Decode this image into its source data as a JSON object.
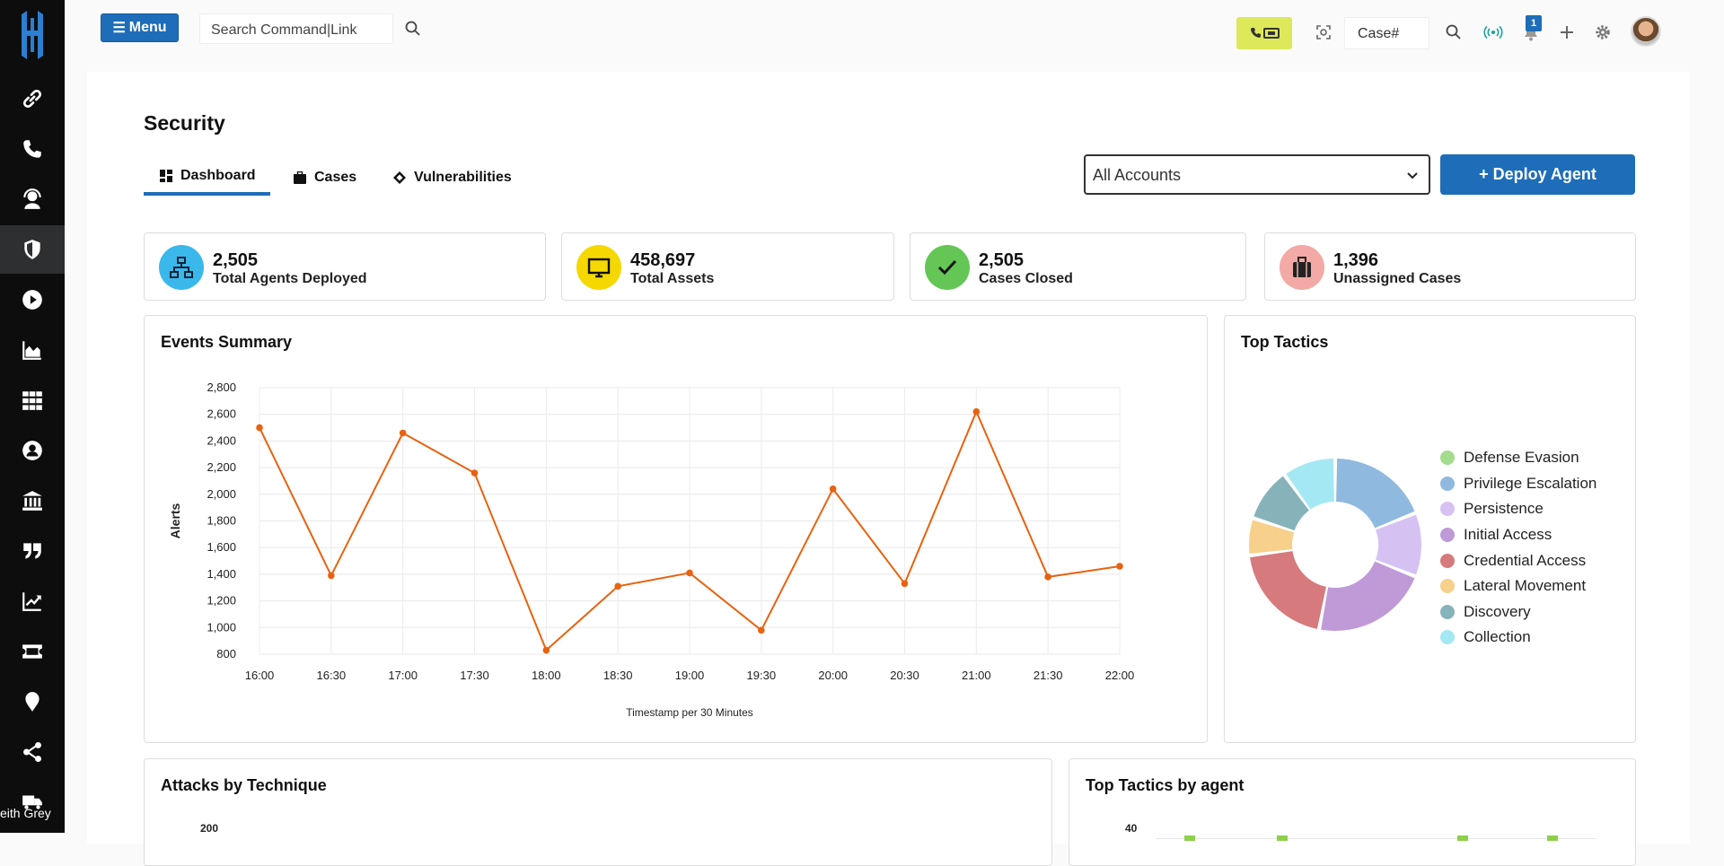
{
  "sidebar": {
    "user_label": "eith Grey",
    "items": [
      {
        "icon": "link-icon"
      },
      {
        "icon": "phone-icon"
      },
      {
        "icon": "support-agent-icon"
      },
      {
        "icon": "shield-icon"
      },
      {
        "icon": "play-icon"
      },
      {
        "icon": "area-chart-icon"
      },
      {
        "icon": "grid-icon"
      },
      {
        "icon": "user-icon"
      },
      {
        "icon": "bank-icon"
      },
      {
        "icon": "quote-icon"
      },
      {
        "icon": "trend-chart-icon"
      },
      {
        "icon": "ticket-icon"
      },
      {
        "icon": "location-pin-icon"
      },
      {
        "icon": "share-icon"
      },
      {
        "icon": "truck-icon"
      }
    ]
  },
  "topbar": {
    "menu_label": "Menu",
    "search_placeholder": "Search Command|Link",
    "case_placeholder": "Case#",
    "notification_count": "1"
  },
  "page": {
    "title": "Security",
    "tabs": [
      {
        "label": "Dashboard",
        "icon": "dashboard-icon",
        "active": true
      },
      {
        "label": "Cases",
        "icon": "briefcase-icon",
        "active": false
      },
      {
        "label": "Vulnerabilities",
        "icon": "diamond-icon",
        "active": false
      }
    ],
    "account_select": "All Accounts",
    "deploy_button": "+ Deploy Agent"
  },
  "stats": [
    {
      "value": "2,505",
      "label": "Total Agents Deployed",
      "color": "#3ab8ec",
      "icon": "network-icon"
    },
    {
      "value": "458,697",
      "label": "Total Assets",
      "color": "#f4d800",
      "icon": "monitor-icon"
    },
    {
      "value": "2,505",
      "label": "Cases Closed",
      "color": "#63c655",
      "icon": "check-icon"
    },
    {
      "value": "1,396",
      "label": "Unassigned Cases",
      "color": "#f3a9a5",
      "icon": "briefcase-icon"
    }
  ],
  "events_card": {
    "title": "Events Summary"
  },
  "tactics_card": {
    "title": "Top Tactics"
  },
  "attacks_card": {
    "title": "Attacks by Technique",
    "first_tick": "200"
  },
  "agent_tactics_card": {
    "title": "Top Tactics by agent",
    "first_tick": "40"
  },
  "chart_data": [
    {
      "type": "line",
      "title": "Events Summary",
      "xlabel": "Timestamp per 30 Minutes",
      "ylabel": "Alerts",
      "x": [
        "16:00",
        "16:30",
        "17:00",
        "17:30",
        "18:00",
        "18:30",
        "19:00",
        "19:30",
        "20:00",
        "20:30",
        "21:00",
        "21:30",
        "22:00"
      ],
      "values": [
        2500,
        1390,
        2460,
        2160,
        830,
        1310,
        1410,
        980,
        2040,
        1330,
        2620,
        1380,
        1460
      ],
      "ylim": [
        800,
        2800
      ],
      "yticks": [
        "800",
        "1,000",
        "1,200",
        "1,400",
        "1,600",
        "1,800",
        "2,000",
        "2,200",
        "2,400",
        "2,600",
        "2,800"
      ],
      "color": "#e8620f",
      "grid": true
    },
    {
      "type": "pie",
      "title": "Top Tactics",
      "legend_position": "right",
      "slices": [
        {
          "label": "Defense Evasion",
          "value": 0,
          "color": "#a2dc8c"
        },
        {
          "label": "Privilege Escalation",
          "value": 19,
          "color": "#8fb9df"
        },
        {
          "label": "Persistence",
          "value": 12,
          "color": "#d6c2f2"
        },
        {
          "label": "Initial Access",
          "value": 22,
          "color": "#c09ad6"
        },
        {
          "label": "Credential Access",
          "value": 20,
          "color": "#d67a7d"
        },
        {
          "label": "Lateral Movement",
          "value": 7,
          "color": "#f7d08b"
        },
        {
          "label": "Discovery",
          "value": 10,
          "color": "#86b3b9"
        },
        {
          "label": "Collection",
          "value": 10,
          "color": "#a4e8f4"
        }
      ]
    }
  ]
}
